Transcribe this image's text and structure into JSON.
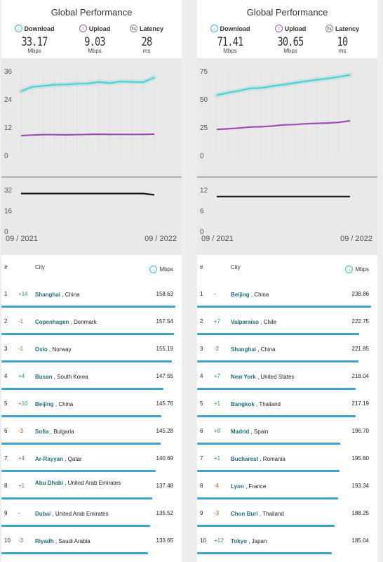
{
  "colors": {
    "download": "#4fd0d0",
    "upload": "#a24bb5",
    "latency": "#1a1a1a",
    "bar": "#3ea4cf"
  },
  "panels": [
    {
      "title": "Global Performance",
      "stats": [
        {
          "icon": "download-icon",
          "label": "Download",
          "value": "33.17",
          "unit": "Mbps"
        },
        {
          "icon": "upload-icon",
          "label": "Upload",
          "value": "9.03",
          "unit": "Mbps"
        },
        {
          "icon": "latency-icon",
          "label": "Latency",
          "value": "28",
          "unit": "ms"
        }
      ],
      "chart_data": {
        "type": "line",
        "x": [
          "09/2021",
          "10/2021",
          "11/2021",
          "12/2021",
          "01/2022",
          "02/2022",
          "03/2022",
          "04/2022",
          "05/2022",
          "06/2022",
          "07/2022",
          "08/2022",
          "09/2022"
        ],
        "series": [
          {
            "values": [
              27.4,
              29.2,
              29.6,
              30.1,
              30.2,
              30.5,
              30.6,
              31.3,
              30.8,
              31.5,
              31.3,
              31.2,
              33.17
            ]
          },
          {
            "values": [
              8.4,
              8.6,
              8.8,
              8.8,
              8.7,
              8.8,
              8.9,
              9.0,
              8.9,
              8.9,
              8.9,
              8.9,
              9.03
            ]
          }
        ],
        "yticks": [
          "36",
          "24",
          "12",
          "0"
        ],
        "ylim": [
          0,
          36
        ],
        "latency": {
          "values": [
            29,
            29,
            29,
            29,
            29,
            29,
            29,
            29,
            29,
            29,
            29,
            29,
            28
          ],
          "yticks": [
            "32",
            "16",
            "0"
          ],
          "ylim": [
            0,
            32
          ]
        },
        "xlabels": [
          "09 / 2021",
          "09 / 2022"
        ]
      },
      "table": {
        "col_rank": "#",
        "col_city": "City",
        "col_speed": "Mbps",
        "rows": [
          {
            "rank": "1",
            "change": "+14",
            "city": "Shanghai",
            "country": ", China",
            "mbps": "158.63"
          },
          {
            "rank": "2",
            "change": "-1",
            "city": "Copenhagen",
            "country": ", Denmark",
            "mbps": "157.54"
          },
          {
            "rank": "3",
            "change": "-1",
            "city": "Oslo",
            "country": ", Norway",
            "mbps": "155.19"
          },
          {
            "rank": "4",
            "change": "+4",
            "city": "Busan",
            "country": ", South Korea",
            "mbps": "147.55"
          },
          {
            "rank": "5",
            "change": "+10",
            "city": "Beijing",
            "country": ", China",
            "mbps": "145.76"
          },
          {
            "rank": "6",
            "change": "-3",
            "city": "Sofia",
            "country": ", Bulgaria",
            "mbps": "145.28"
          },
          {
            "rank": "7",
            "change": "+4",
            "city": "Ar-Rayyan",
            "country": ", Qatar",
            "mbps": "140.69"
          },
          {
            "rank": "8",
            "change": "+1",
            "city": "Abu Dhabi",
            "country": ", United Arab Emirates",
            "mbps": "137.48"
          },
          {
            "rank": "9",
            "change": "-",
            "city": "Dubai",
            "country": ", United Arab Emirates",
            "mbps": "135.52"
          },
          {
            "rank": "10",
            "change": "-3",
            "city": "Riyadh",
            "country": ", Saudi Arabia",
            "mbps": "133.65"
          }
        ]
      }
    },
    {
      "title": "Global Performance",
      "stats": [
        {
          "icon": "download-icon",
          "label": "Download",
          "value": "71.41",
          "unit": "Mbps"
        },
        {
          "icon": "upload-icon",
          "label": "Upload",
          "value": "30.65",
          "unit": "Mbps"
        },
        {
          "icon": "latency-icon",
          "label": "Latency",
          "value": "10",
          "unit": "ms"
        }
      ],
      "chart_data": {
        "type": "line",
        "x": [
          "09/2021",
          "10/2021",
          "11/2021",
          "12/2021",
          "01/2022",
          "02/2022",
          "03/2022",
          "04/2022",
          "05/2022",
          "06/2022",
          "07/2022",
          "08/2022",
          "09/2022"
        ],
        "series": [
          {
            "values": [
              53.5,
              55.5,
              57.4,
              59.5,
              59.9,
              61.5,
              62.8,
              64.3,
              65.8,
              67.2,
              68.3,
              69.8,
              71.41
            ]
          },
          {
            "values": [
              23.0,
              23.5,
              24.2,
              25.1,
              25.4,
              26.0,
              27.0,
              27.3,
              28.0,
              28.4,
              28.7,
              29.3,
              30.65
            ]
          }
        ],
        "yticks": [
          "75",
          "50",
          "25",
          "0"
        ],
        "ylim": [
          0,
          75
        ],
        "latency": {
          "values": [
            10,
            10,
            10,
            10,
            10,
            10,
            10,
            10,
            10,
            10,
            10,
            10,
            10
          ],
          "yticks": [
            "12",
            "6",
            "0"
          ],
          "ylim": [
            0,
            12
          ]
        },
        "xlabels": [
          "09 / 2021",
          "09 / 2022"
        ]
      },
      "table": {
        "col_rank": "#",
        "col_city": "City",
        "col_speed": "Mbps",
        "rows": [
          {
            "rank": "1",
            "change": "-",
            "city": "Beijing",
            "country": ", China",
            "mbps": "238.86"
          },
          {
            "rank": "2",
            "change": "+7",
            "city": "Valparaiso",
            "country": ", Chile",
            "mbps": "222.75"
          },
          {
            "rank": "3",
            "change": "-2",
            "city": "Shanghai",
            "country": ", China",
            "mbps": "221.85"
          },
          {
            "rank": "4",
            "change": "+7",
            "city": "New York",
            "country": ", United States",
            "mbps": "218.04"
          },
          {
            "rank": "5",
            "change": "+1",
            "city": "Bangkok",
            "country": ", Thailand",
            "mbps": "217.19"
          },
          {
            "rank": "6",
            "change": "+8",
            "city": "Madrid",
            "country": ", Spain",
            "mbps": "196.70"
          },
          {
            "rank": "7",
            "change": "+1",
            "city": "Bucharest",
            "country": ", Romania",
            "mbps": "195.60"
          },
          {
            "rank": "8",
            "change": "-4",
            "city": "Lyon",
            "country": ", France",
            "mbps": "193.34"
          },
          {
            "rank": "9",
            "change": "-3",
            "city": "Chon Buri",
            "country": ", Thailand",
            "mbps": "188.25"
          },
          {
            "rank": "10",
            "change": "+12",
            "city": "Tokyo",
            "country": ", Japan",
            "mbps": "185.04"
          }
        ]
      }
    }
  ]
}
